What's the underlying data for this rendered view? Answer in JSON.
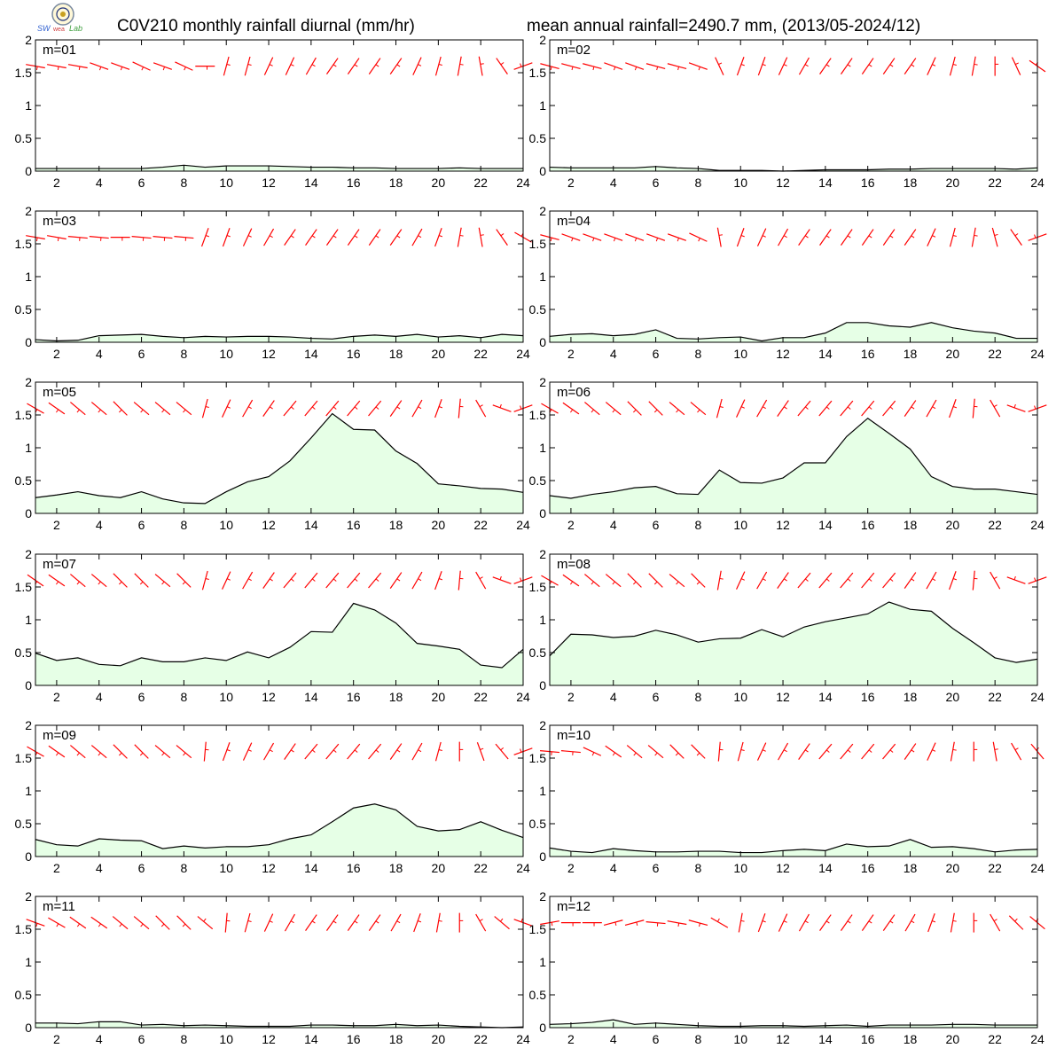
{
  "header": {
    "title_left": "C0V210 monthly rainfall diurnal (mm/hr)",
    "title_right": "mean annual rainfall=2490.7 mm, (2013/05-2024/12)"
  },
  "logo": {
    "icon": "lab-logo-seal"
  },
  "colors": {
    "fill": "#e6ffe6",
    "line": "#000000",
    "wind": "#ff0000"
  },
  "axes": {
    "x_ticks": [
      2,
      4,
      6,
      8,
      10,
      12,
      14,
      16,
      18,
      20,
      22,
      24
    ],
    "y_ticks": [
      "0",
      "0.5",
      "1",
      "1.5",
      "2"
    ],
    "xlim": [
      1,
      24
    ],
    "ylim": [
      0,
      2
    ]
  },
  "chart_data": [
    {
      "type": "area",
      "label": "m=01",
      "x_start": 1,
      "values": [
        0.04,
        0.04,
        0.04,
        0.04,
        0.04,
        0.04,
        0.06,
        0.09,
        0.06,
        0.08,
        0.08,
        0.08,
        0.07,
        0.06,
        0.06,
        0.05,
        0.05,
        0.04,
        0.04,
        0.04,
        0.05,
        0.04,
        0.04,
        0.04
      ],
      "wind_angles": [
        100,
        100,
        100,
        110,
        110,
        115,
        110,
        115,
        90,
        15,
        15,
        25,
        25,
        30,
        35,
        35,
        35,
        35,
        25,
        15,
        10,
        -10,
        -35,
        -110
      ]
    },
    {
      "type": "area",
      "label": "m=02",
      "x_start": 1,
      "values": [
        0.06,
        0.05,
        0.05,
        0.05,
        0.05,
        0.07,
        0.05,
        0.04,
        0.01,
        0.01,
        0.01,
        0.0,
        0.01,
        0.02,
        0.02,
        0.02,
        0.03,
        0.03,
        0.04,
        0.04,
        0.04,
        0.04,
        0.03,
        0.05
      ],
      "wind_angles": [
        105,
        105,
        105,
        110,
        110,
        105,
        105,
        110,
        -25,
        20,
        20,
        25,
        30,
        35,
        35,
        35,
        35,
        35,
        25,
        15,
        10,
        0,
        -25,
        -55
      ]
    },
    {
      "type": "area",
      "label": "m=03",
      "x_start": 1,
      "values": [
        0.04,
        0.02,
        0.03,
        0.1,
        0.11,
        0.12,
        0.09,
        0.07,
        0.09,
        0.08,
        0.09,
        0.09,
        0.08,
        0.06,
        0.05,
        0.09,
        0.11,
        0.09,
        0.12,
        0.08,
        0.1,
        0.07,
        0.12,
        0.1
      ],
      "wind_angles": [
        100,
        100,
        95,
        95,
        90,
        95,
        95,
        95,
        20,
        20,
        25,
        30,
        35,
        35,
        35,
        35,
        35,
        35,
        30,
        20,
        10,
        -10,
        -35,
        -60
      ]
    },
    {
      "type": "area",
      "label": "m=04",
      "x_start": 1,
      "values": [
        0.09,
        0.12,
        0.13,
        0.1,
        0.12,
        0.19,
        0.06,
        0.05,
        0.07,
        0.08,
        0.02,
        0.07,
        0.07,
        0.14,
        0.3,
        0.3,
        0.25,
        0.23,
        0.3,
        0.22,
        0.17,
        0.14,
        0.06,
        0.06
      ],
      "wind_angles": [
        105,
        110,
        110,
        110,
        110,
        110,
        110,
        115,
        -10,
        20,
        25,
        30,
        35,
        35,
        35,
        35,
        35,
        35,
        25,
        15,
        10,
        -15,
        -35,
        -110
      ]
    },
    {
      "type": "area",
      "label": "m=05",
      "x_start": 1,
      "values": [
        0.24,
        0.28,
        0.33,
        0.27,
        0.24,
        0.33,
        0.22,
        0.16,
        0.15,
        0.33,
        0.48,
        0.56,
        0.8,
        1.15,
        1.52,
        1.28,
        1.27,
        0.95,
        0.76,
        0.45,
        0.42,
        0.38,
        0.37,
        0.32
      ],
      "wind_angles": [
        120,
        125,
        130,
        130,
        135,
        130,
        130,
        130,
        15,
        25,
        30,
        35,
        40,
        40,
        40,
        40,
        40,
        35,
        30,
        20,
        5,
        -30,
        -70,
        -110
      ]
    },
    {
      "type": "area",
      "label": "m=06",
      "x_start": 1,
      "values": [
        0.27,
        0.23,
        0.29,
        0.33,
        0.39,
        0.41,
        0.3,
        0.29,
        0.66,
        0.47,
        0.46,
        0.54,
        0.77,
        0.77,
        1.17,
        1.45,
        1.22,
        0.98,
        0.56,
        0.41,
        0.37,
        0.37,
        0.33,
        0.29
      ],
      "wind_angles": [
        120,
        125,
        130,
        130,
        135,
        135,
        130,
        130,
        15,
        25,
        30,
        35,
        40,
        40,
        40,
        40,
        40,
        35,
        30,
        20,
        5,
        -30,
        -70,
        -110
      ]
    },
    {
      "type": "area",
      "label": "m=07",
      "x_start": 1,
      "values": [
        0.49,
        0.38,
        0.42,
        0.32,
        0.3,
        0.42,
        0.36,
        0.36,
        0.42,
        0.38,
        0.51,
        0.42,
        0.58,
        0.82,
        0.81,
        1.25,
        1.15,
        0.95,
        0.64,
        0.6,
        0.55,
        0.31,
        0.27,
        0.55
      ],
      "wind_angles": [
        125,
        125,
        130,
        130,
        135,
        135,
        130,
        135,
        15,
        25,
        30,
        35,
        40,
        40,
        40,
        40,
        40,
        35,
        30,
        20,
        5,
        -30,
        -70,
        -110
      ]
    },
    {
      "type": "area",
      "label": "m=08",
      "x_start": 1,
      "values": [
        0.45,
        0.78,
        0.77,
        0.73,
        0.75,
        0.84,
        0.77,
        0.66,
        0.71,
        0.72,
        0.85,
        0.74,
        0.89,
        0.97,
        1.03,
        1.09,
        1.27,
        1.16,
        1.13,
        0.87,
        0.65,
        0.42,
        0.35,
        0.4
      ],
      "wind_angles": [
        120,
        125,
        130,
        130,
        135,
        135,
        130,
        135,
        10,
        25,
        30,
        35,
        40,
        40,
        40,
        40,
        40,
        35,
        30,
        20,
        5,
        -30,
        -70,
        -110
      ]
    },
    {
      "type": "area",
      "label": "m=09",
      "x_start": 1,
      "values": [
        0.26,
        0.18,
        0.16,
        0.27,
        0.25,
        0.24,
        0.12,
        0.16,
        0.13,
        0.15,
        0.15,
        0.18,
        0.27,
        0.33,
        0.53,
        0.74,
        0.8,
        0.71,
        0.46,
        0.39,
        0.41,
        0.53,
        0.4,
        0.29
      ],
      "wind_angles": [
        120,
        125,
        130,
        130,
        135,
        135,
        130,
        130,
        5,
        20,
        25,
        30,
        35,
        40,
        40,
        40,
        40,
        35,
        30,
        15,
        0,
        -20,
        -40,
        -110
      ]
    },
    {
      "type": "area",
      "label": "m=10",
      "x_start": 1,
      "values": [
        0.13,
        0.08,
        0.06,
        0.12,
        0.09,
        0.07,
        0.07,
        0.08,
        0.08,
        0.06,
        0.06,
        0.09,
        0.11,
        0.09,
        0.19,
        0.15,
        0.16,
        0.26,
        0.14,
        0.15,
        0.12,
        0.07,
        0.1,
        0.11
      ],
      "wind_angles": [
        95,
        95,
        115,
        125,
        130,
        130,
        135,
        135,
        5,
        15,
        25,
        30,
        35,
        40,
        40,
        40,
        40,
        35,
        25,
        10,
        0,
        -10,
        -30,
        -40
      ]
    },
    {
      "type": "area",
      "label": "m=11",
      "x_start": 1,
      "values": [
        0.07,
        0.07,
        0.06,
        0.09,
        0.09,
        0.04,
        0.05,
        0.03,
        0.04,
        0.03,
        0.02,
        0.02,
        0.02,
        0.04,
        0.04,
        0.03,
        0.03,
        0.05,
        0.03,
        0.04,
        0.02,
        0.01,
        0.0,
        0.01
      ],
      "wind_angles": [
        110,
        120,
        125,
        125,
        130,
        130,
        135,
        135,
        -50,
        5,
        15,
        25,
        30,
        35,
        35,
        35,
        35,
        30,
        20,
        10,
        0,
        -30,
        -50,
        -70
      ]
    },
    {
      "type": "area",
      "label": "m=12",
      "x_start": 1,
      "values": [
        0.05,
        0.06,
        0.08,
        0.12,
        0.05,
        0.07,
        0.05,
        0.03,
        0.02,
        0.02,
        0.03,
        0.03,
        0.02,
        0.03,
        0.04,
        0.02,
        0.04,
        0.04,
        0.04,
        0.05,
        0.05,
        0.04,
        0.04,
        0.04
      ],
      "wind_angles": [
        80,
        90,
        90,
        75,
        75,
        95,
        100,
        105,
        -60,
        10,
        20,
        25,
        30,
        35,
        35,
        35,
        35,
        30,
        20,
        10,
        0,
        -30,
        -45,
        -50
      ]
    }
  ]
}
